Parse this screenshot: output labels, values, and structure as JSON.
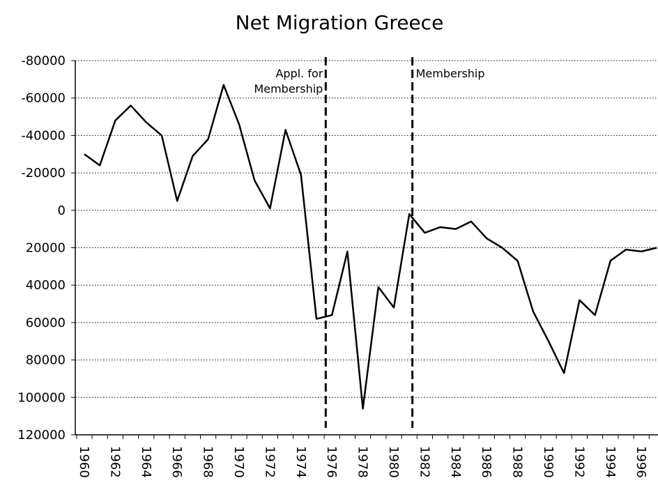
{
  "chart_data": {
    "type": "line",
    "title": "Net Migration Greece",
    "categories": [
      "1960",
      null,
      "1962",
      null,
      "1964",
      null,
      "1966",
      null,
      "1968",
      null,
      "1970",
      null,
      "1972",
      null,
      "1974",
      null,
      "1976",
      null,
      "1978",
      null,
      "1980",
      null,
      "1982",
      null,
      "1984",
      null,
      "1986",
      null,
      "1988",
      null,
      "1990",
      null,
      "1992",
      null,
      "1994",
      null,
      "1996",
      null
    ],
    "series": [
      {
        "name": "Net Migration",
        "color": "#000000",
        "values": [
          -30000,
          -24000,
          -48000,
          -56000,
          -47000,
          -40000,
          -5000,
          -29000,
          -38000,
          -67000,
          -46000,
          -16000,
          -1000,
          -43000,
          -19000,
          58000,
          56000,
          22000,
          106000,
          41000,
          52000,
          2000,
          12000,
          9000,
          10000,
          6000,
          15000,
          20000,
          27000,
          54000,
          70000,
          87000,
          48000,
          56000,
          27000,
          21000,
          22000,
          20000
        ]
      }
    ],
    "ylim": [
      -80000,
      120000
    ],
    "y_inverted": true,
    "yticks": [
      -80000,
      -60000,
      -40000,
      -20000,
      0,
      20000,
      40000,
      60000,
      80000,
      100000,
      120000
    ],
    "grid": true,
    "annotations": [
      {
        "lines": [
          "Appl. for",
          "Membership"
        ],
        "x": 15.6,
        "align": "end"
      },
      {
        "lines": [
          "Membership"
        ],
        "x": 21.2,
        "align": "start"
      }
    ]
  }
}
